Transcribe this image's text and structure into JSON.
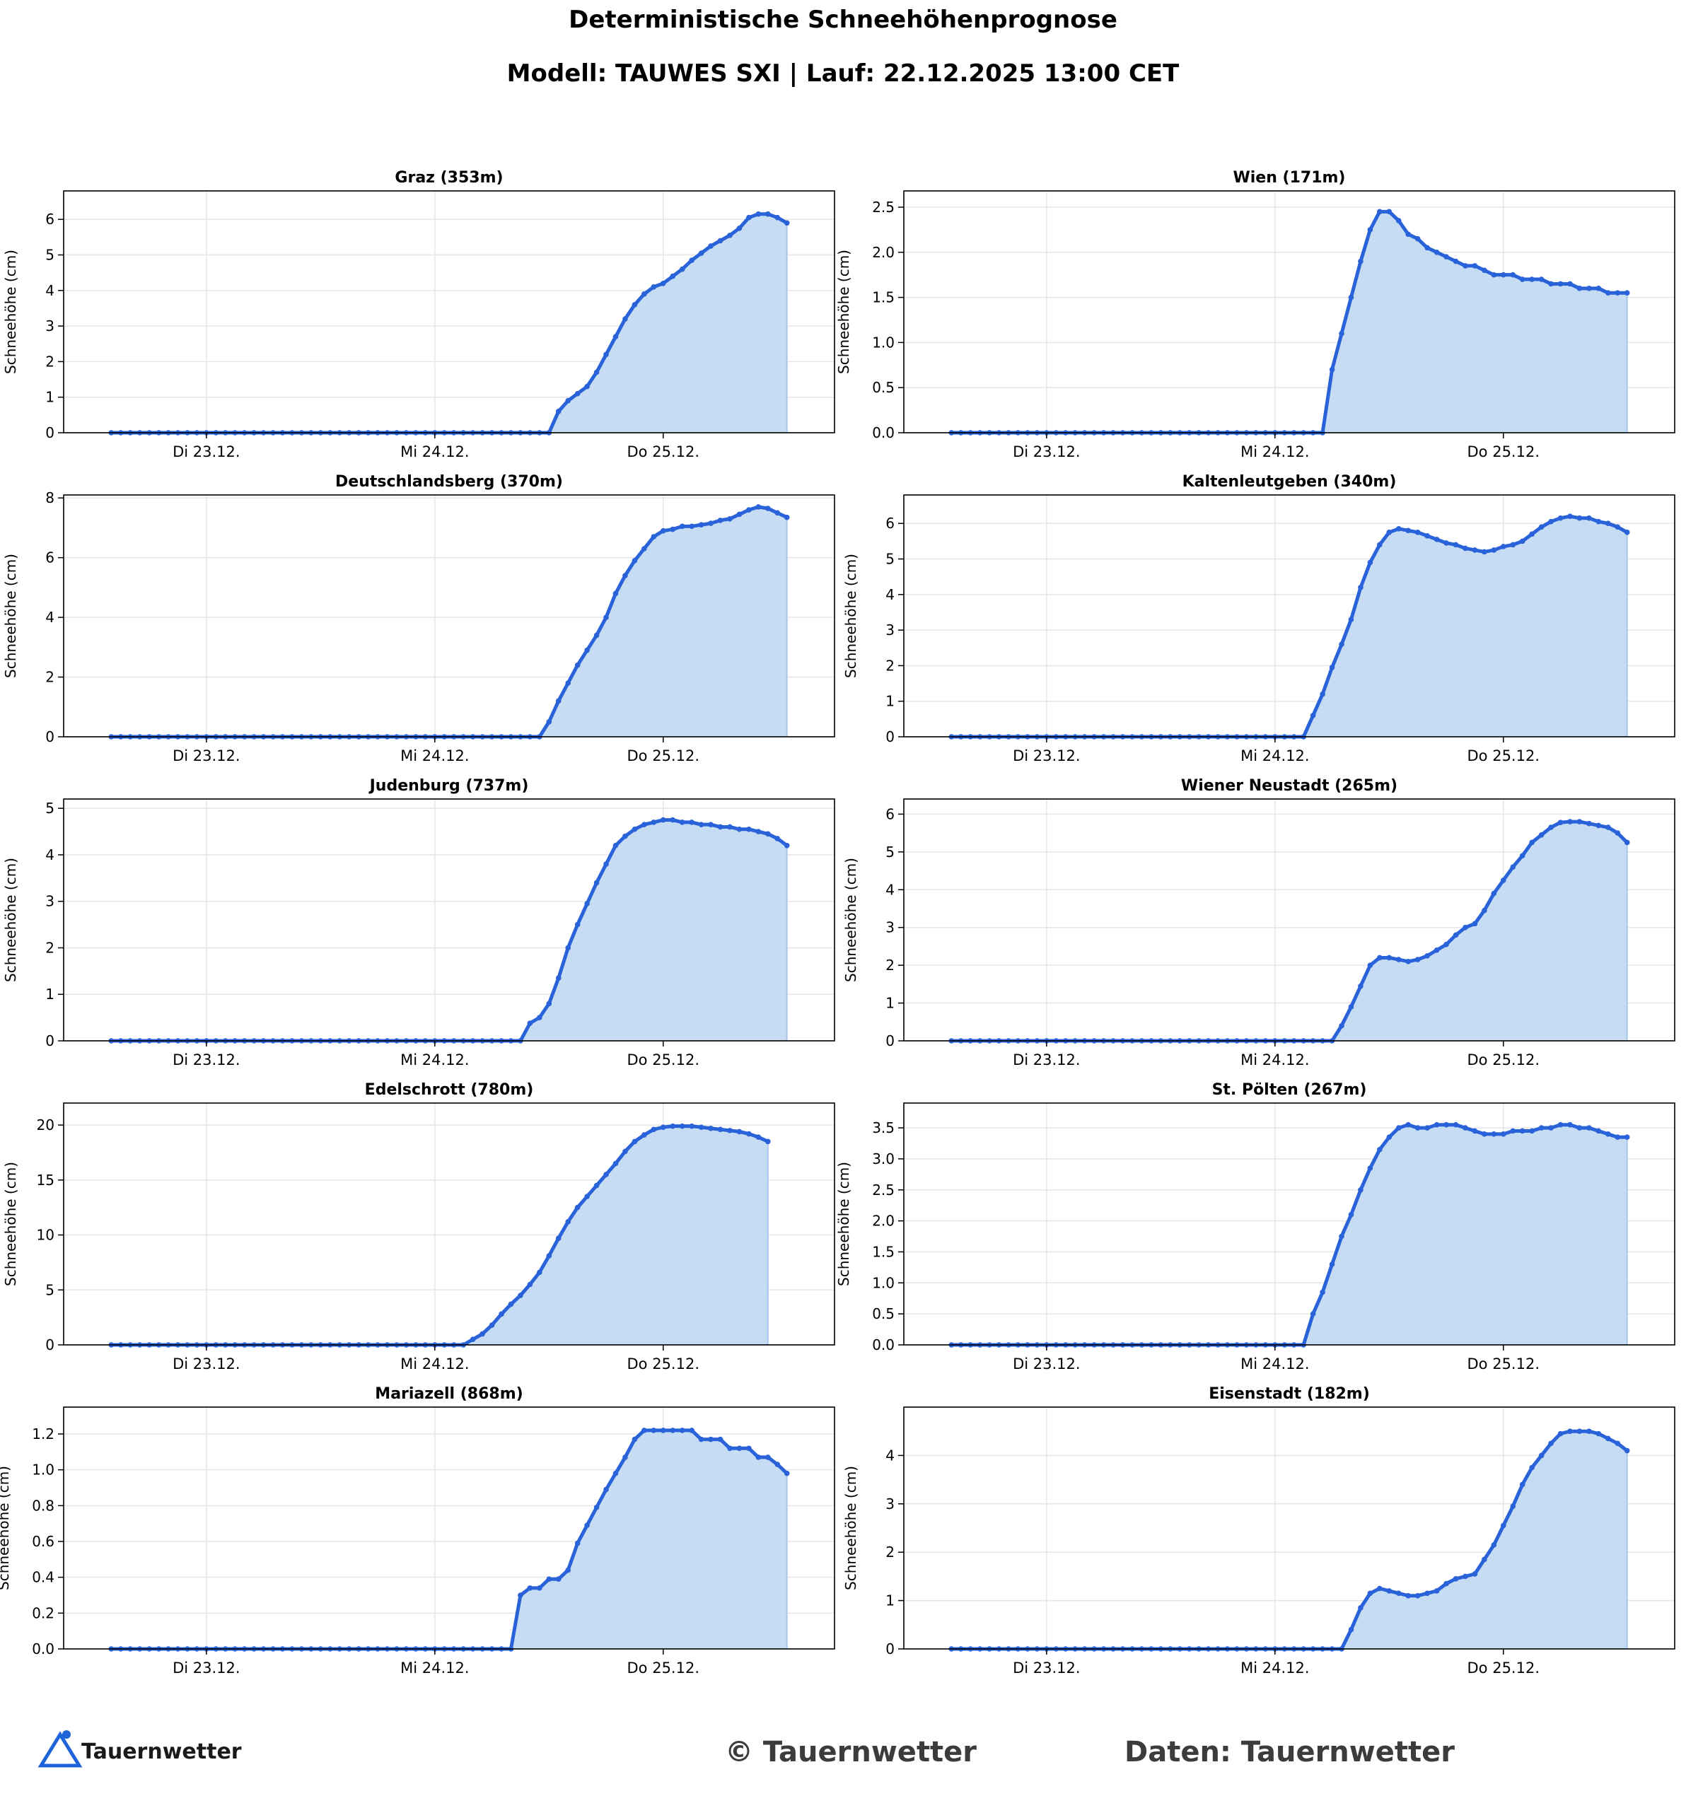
{
  "header": {
    "title": "Deterministische Schneehöhenprognose",
    "subtitle": "Modell: TAUWES SXI | Lauf: 22.12.2025 13:00 CET"
  },
  "footer": {
    "logo_text": "Tauernwetter",
    "copyright": "© Tauernwetter",
    "source": "Daten: Tauernwetter"
  },
  "colors": {
    "line": "#2962d9",
    "fill": "#c6dcf2",
    "grid": "#e6e6e6"
  },
  "chart_data": [
    {
      "type": "area",
      "title": "Graz (353m)",
      "ylabel": "Schneehöhe (cm)",
      "xtick_labels": [
        "Di 23.12.",
        "Mi 24.12.",
        "Do 25.12."
      ],
      "xtick_hours": [
        11,
        35,
        59
      ],
      "ylim": [
        0,
        6.8
      ],
      "yticks": [
        0,
        1,
        2,
        3,
        4,
        5,
        6
      ],
      "ytick_labels": [
        "0",
        "1",
        "2",
        "3",
        "4",
        "5",
        "6"
      ],
      "x_start_hour": 1,
      "step_hours": 1,
      "onset_hour": 47,
      "values_after_onset": [
        0.6,
        0.9,
        1.1,
        1.3,
        1.7,
        2.2,
        2.7,
        3.2,
        3.6,
        3.9,
        4.1,
        4.2,
        4.4,
        4.6,
        4.85,
        5.05,
        5.25,
        5.4,
        5.55,
        5.75,
        6.05,
        6.15,
        6.15,
        6.05,
        5.9
      ]
    },
    {
      "type": "area",
      "title": "Wien (171m)",
      "ylabel": "Schneehöhe (cm)",
      "xtick_labels": [
        "Di 23.12.",
        "Mi 24.12.",
        "Do 25.12."
      ],
      "xtick_hours": [
        11,
        35,
        59
      ],
      "ylim": [
        0,
        2.68
      ],
      "yticks": [
        0,
        0.5,
        1,
        1.5,
        2,
        2.5
      ],
      "ytick_labels": [
        "0.0",
        "0.5",
        "1.0",
        "1.5",
        "2.0",
        "2.5"
      ],
      "x_start_hour": 1,
      "step_hours": 1,
      "onset_hour": 40,
      "values_after_onset": [
        0.7,
        1.1,
        1.5,
        1.9,
        2.25,
        2.45,
        2.45,
        2.35,
        2.2,
        2.15,
        2.05,
        2.0,
        1.95,
        1.9,
        1.85,
        1.85,
        1.8,
        1.75,
        1.75,
        1.75,
        1.7,
        1.7,
        1.7,
        1.65,
        1.65,
        1.65,
        1.6,
        1.6,
        1.6,
        1.55,
        1.55,
        1.55
      ]
    },
    {
      "type": "area",
      "title": "Deutschlandsberg (370m)",
      "ylabel": "Schneehöhe (cm)",
      "xtick_labels": [
        "Di 23.12.",
        "Mi 24.12.",
        "Do 25.12."
      ],
      "xtick_hours": [
        11,
        35,
        59
      ],
      "ylim": [
        0,
        8.1
      ],
      "yticks": [
        0,
        2,
        4,
        6,
        8
      ],
      "ytick_labels": [
        "0",
        "2",
        "4",
        "6",
        "8"
      ],
      "x_start_hour": 1,
      "step_hours": 1,
      "onset_hour": 46,
      "values_after_onset": [
        0.5,
        1.2,
        1.8,
        2.4,
        2.9,
        3.4,
        4.0,
        4.8,
        5.4,
        5.9,
        6.3,
        6.7,
        6.9,
        6.95,
        7.05,
        7.05,
        7.1,
        7.15,
        7.25,
        7.3,
        7.45,
        7.6,
        7.7,
        7.65,
        7.5,
        7.35
      ]
    },
    {
      "type": "area",
      "title": "Kaltenleutgeben (340m)",
      "ylabel": "Schneehöhe (cm)",
      "xtick_labels": [
        "Di 23.12.",
        "Mi 24.12.",
        "Do 25.12."
      ],
      "xtick_hours": [
        11,
        35,
        59
      ],
      "ylim": [
        0,
        6.8
      ],
      "yticks": [
        0,
        1,
        2,
        3,
        4,
        5,
        6
      ],
      "ytick_labels": [
        "0",
        "1",
        "2",
        "3",
        "4",
        "5",
        "6"
      ],
      "x_start_hour": 1,
      "step_hours": 1,
      "onset_hour": 38,
      "values_after_onset": [
        0.6,
        1.2,
        1.95,
        2.6,
        3.3,
        4.2,
        4.9,
        5.4,
        5.75,
        5.85,
        5.8,
        5.75,
        5.65,
        5.55,
        5.45,
        5.4,
        5.3,
        5.25,
        5.2,
        5.25,
        5.35,
        5.4,
        5.5,
        5.7,
        5.9,
        6.05,
        6.15,
        6.2,
        6.15,
        6.15,
        6.05,
        6.0,
        5.9,
        5.75
      ]
    },
    {
      "type": "area",
      "title": "Judenburg (737m)",
      "ylabel": "Schneehöhe (cm)",
      "xtick_labels": [
        "Di 23.12.",
        "Mi 24.12.",
        "Do 25.12."
      ],
      "xtick_hours": [
        11,
        35,
        59
      ],
      "ylim": [
        0,
        5.2
      ],
      "yticks": [
        0,
        1,
        2,
        3,
        4,
        5
      ],
      "ytick_labels": [
        "0",
        "1",
        "2",
        "3",
        "4",
        "5"
      ],
      "x_start_hour": 1,
      "step_hours": 1,
      "onset_hour": 44,
      "values_after_onset": [
        0.38,
        0.5,
        0.8,
        1.35,
        2.0,
        2.5,
        2.95,
        3.4,
        3.8,
        4.2,
        4.4,
        4.55,
        4.65,
        4.7,
        4.75,
        4.75,
        4.7,
        4.7,
        4.65,
        4.65,
        4.6,
        4.6,
        4.55,
        4.55,
        4.5,
        4.45,
        4.35,
        4.2
      ]
    },
    {
      "type": "area",
      "title": "Wiener Neustadt (265m)",
      "ylabel": "Schneehöhe (cm)",
      "xtick_labels": [
        "Di 23.12.",
        "Mi 24.12.",
        "Do 25.12."
      ],
      "xtick_hours": [
        11,
        35,
        59
      ],
      "ylim": [
        0,
        6.4
      ],
      "yticks": [
        0,
        1,
        2,
        3,
        4,
        5,
        6
      ],
      "ytick_labels": [
        "0",
        "1",
        "2",
        "3",
        "4",
        "5",
        "6"
      ],
      "x_start_hour": 1,
      "step_hours": 1,
      "onset_hour": 41,
      "values_after_onset": [
        0.4,
        0.9,
        1.45,
        2.0,
        2.2,
        2.2,
        2.15,
        2.1,
        2.15,
        2.25,
        2.4,
        2.55,
        2.8,
        3.0,
        3.1,
        3.45,
        3.9,
        4.25,
        4.6,
        4.9,
        5.25,
        5.45,
        5.65,
        5.78,
        5.8,
        5.8,
        5.75,
        5.7,
        5.65,
        5.5,
        5.25
      ]
    },
    {
      "type": "area",
      "title": "Edelschrott (780m)",
      "ylabel": "Schneehöhe (cm)",
      "xtick_labels": [
        "Di 23.12.",
        "Mi 24.12.",
        "Do 25.12."
      ],
      "xtick_hours": [
        11,
        35,
        59
      ],
      "ylim": [
        0,
        22
      ],
      "yticks": [
        0,
        5,
        10,
        15,
        20
      ],
      "ytick_labels": [
        "0",
        "5",
        "10",
        "15",
        "20"
      ],
      "x_start_hour": 1,
      "step_hours": 1,
      "onset_hour": 38,
      "values_after_onset": [
        0.5,
        1.0,
        1.8,
        2.8,
        3.7,
        4.5,
        5.5,
        6.6,
        8.1,
        9.7,
        11.2,
        12.5,
        13.5,
        14.5,
        15.5,
        16.5,
        17.6,
        18.5,
        19.1,
        19.6,
        19.8,
        19.9,
        19.9,
        19.9,
        19.8,
        19.7,
        19.6,
        19.5,
        19.4,
        19.2,
        18.9,
        18.5
      ]
    },
    {
      "type": "area",
      "title": "St. Pölten (267m)",
      "ylabel": "Schneehöhe (cm)",
      "xtick_labels": [
        "Di 23.12.",
        "Mi 24.12.",
        "Do 25.12."
      ],
      "xtick_hours": [
        11,
        35,
        59
      ],
      "ylim": [
        0,
        3.9
      ],
      "yticks": [
        0,
        0.5,
        1,
        1.5,
        2,
        2.5,
        3,
        3.5
      ],
      "ytick_labels": [
        "0.0",
        "0.5",
        "1.0",
        "1.5",
        "2.0",
        "2.5",
        "3.0",
        "3.5"
      ],
      "x_start_hour": 1,
      "step_hours": 1,
      "onset_hour": 38,
      "values_after_onset": [
        0.5,
        0.85,
        1.3,
        1.75,
        2.1,
        2.5,
        2.85,
        3.15,
        3.35,
        3.5,
        3.55,
        3.5,
        3.5,
        3.55,
        3.55,
        3.55,
        3.5,
        3.45,
        3.4,
        3.4,
        3.4,
        3.45,
        3.45,
        3.45,
        3.5,
        3.5,
        3.55,
        3.55,
        3.5,
        3.5,
        3.45,
        3.4,
        3.35,
        3.35
      ]
    },
    {
      "type": "area",
      "title": "Mariazell (868m)",
      "ylabel": "Schneehöhe (cm)",
      "xtick_labels": [
        "Di 23.12.",
        "Mi 24.12.",
        "Do 25.12."
      ],
      "xtick_hours": [
        11,
        35,
        59
      ],
      "ylim": [
        0,
        1.35
      ],
      "yticks": [
        0,
        0.2,
        0.4,
        0.6,
        0.8,
        1.0,
        1.2
      ],
      "ytick_labels": [
        "0.0",
        "0.2",
        "0.4",
        "0.6",
        "0.8",
        "1.0",
        "1.2"
      ],
      "x_start_hour": 1,
      "step_hours": 1,
      "onset_hour": 43,
      "values_after_onset": [
        0.3,
        0.34,
        0.34,
        0.39,
        0.39,
        0.44,
        0.59,
        0.69,
        0.79,
        0.89,
        0.98,
        1.07,
        1.17,
        1.22,
        1.22,
        1.22,
        1.22,
        1.22,
        1.22,
        1.17,
        1.17,
        1.17,
        1.12,
        1.12,
        1.12,
        1.07,
        1.07,
        1.03,
        0.98
      ]
    },
    {
      "type": "area",
      "title": "Eisenstadt (182m)",
      "ylabel": "Schneehöhe (cm)",
      "xtick_labels": [
        "Di 23.12.",
        "Mi 24.12.",
        "Do 25.12."
      ],
      "xtick_hours": [
        11,
        35,
        59
      ],
      "ylim": [
        0,
        5.0
      ],
      "yticks": [
        0,
        1,
        2,
        3,
        4
      ],
      "ytick_labels": [
        "0",
        "1",
        "2",
        "3",
        "4"
      ],
      "x_start_hour": 1,
      "step_hours": 1,
      "onset_hour": 42,
      "values_after_onset": [
        0.4,
        0.85,
        1.15,
        1.25,
        1.2,
        1.15,
        1.1,
        1.1,
        1.15,
        1.2,
        1.35,
        1.45,
        1.5,
        1.55,
        1.85,
        2.15,
        2.55,
        2.95,
        3.4,
        3.75,
        4.0,
        4.25,
        4.45,
        4.5,
        4.5,
        4.5,
        4.45,
        4.35,
        4.25,
        4.1
      ]
    }
  ]
}
